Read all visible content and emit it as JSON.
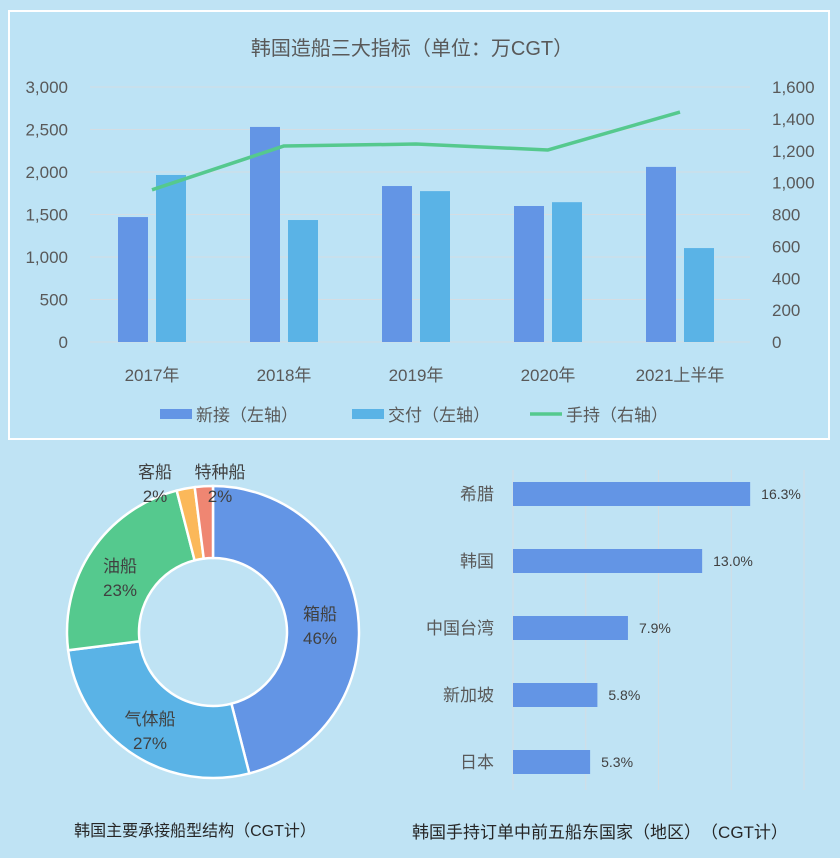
{
  "chart_data": [
    {
      "type": "bar+line",
      "title": "韩国造船三大指标（单位：万CGT）",
      "categories": [
        "2017年",
        "2018年",
        "2019年",
        "2020年",
        "2021上半年"
      ],
      "y_left": {
        "range": [
          0,
          3000
        ],
        "ticks": [
          "0",
          "500",
          "1,000",
          "1,500",
          "2,000",
          "2,500",
          "3,000"
        ]
      },
      "y_right": {
        "range": [
          0,
          1600
        ],
        "ticks": [
          "0",
          "200",
          "400",
          "600",
          "800",
          "1,000",
          "1,200",
          "1,400",
          "1,600"
        ]
      },
      "grid": true,
      "legend_position": "bottom",
      "series": [
        {
          "name": "新接（左轴）",
          "type": "bar",
          "axis": "left",
          "color": "#6395e5",
          "values": [
            1470,
            2530,
            1835,
            1600,
            2060
          ]
        },
        {
          "name": "交付（左轴）",
          "type": "bar",
          "axis": "left",
          "color": "#5ab3e6",
          "values": [
            1965,
            1435,
            1775,
            1645,
            1105
          ]
        },
        {
          "name": "手持（右轴）",
          "type": "line",
          "axis": "right",
          "color": "#55c98e",
          "values": [
            955,
            1230,
            1242,
            1205,
            1443
          ]
        }
      ]
    },
    {
      "type": "pie",
      "subtype": "donut",
      "title": "韩国主要承接船型结构（CGT计）",
      "slices": [
        {
          "label": "箱船",
          "value": 46,
          "text": "46%",
          "color": "#6395e5"
        },
        {
          "label": "气体船",
          "value": 27,
          "text": "27%",
          "color": "#5ab3e6"
        },
        {
          "label": "油船",
          "value": 23,
          "text": "23%",
          "color": "#55c98e"
        },
        {
          "label": "客船",
          "value": 2,
          "text": "2%",
          "color": "#fbb85a"
        },
        {
          "label": "特种船",
          "value": 2,
          "text": "2%",
          "color": "#ef8672"
        }
      ]
    },
    {
      "type": "bar",
      "orientation": "horizontal",
      "title": "韩国手持订单中前五船东国家（地区）　（CGT计）",
      "categories": [
        "希腊",
        "韩国",
        "中国台湾",
        "新加坡",
        "日本"
      ],
      "values": [
        16.3,
        13.0,
        7.9,
        5.8,
        5.3
      ],
      "labels": [
        "16.3%",
        "13.0%",
        "7.9%",
        "5.8%",
        "5.3%"
      ],
      "xlim": [
        0,
        20
      ],
      "grid": true,
      "color": "#6395e5"
    }
  ]
}
